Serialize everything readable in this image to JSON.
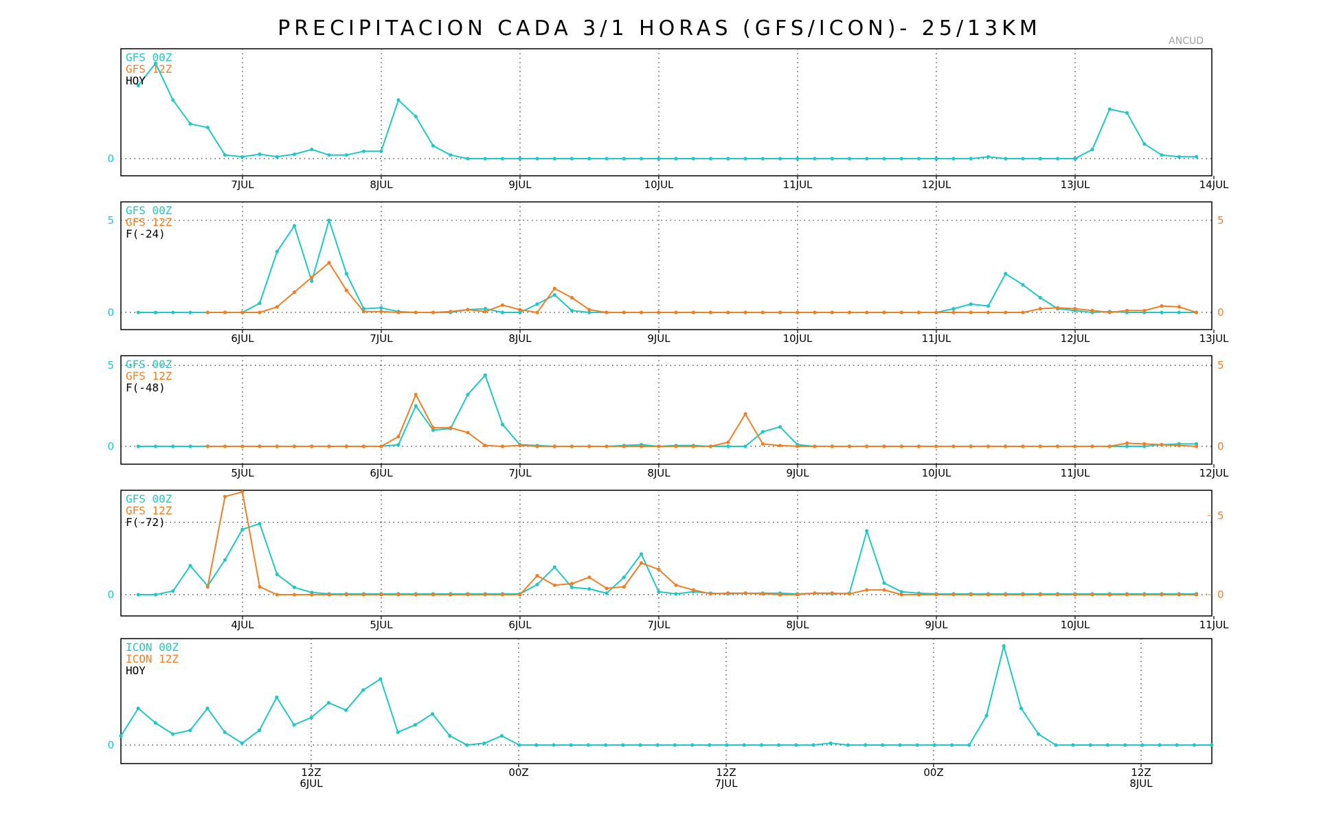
{
  "title": "PRECIPITACION CADA 3/1 HORAS (GFS/ICON)- 25/13KM",
  "station": "ANCUD",
  "colors": {
    "run00": "#1fc7c7",
    "run12": "#f07f24",
    "frame": "#000000",
    "grid": "#333333"
  },
  "chart_data": [
    {
      "type": "line",
      "legend": [
        "GFS 00Z",
        "GFS 12Z",
        "HOY"
      ],
      "x_ticks": [
        "7JUL",
        "8JUL",
        "9JUL",
        "10JUL",
        "11JUL",
        "12JUL",
        "13JUL",
        "14JUL"
      ],
      "x_tick_lines": [
        "",
        ""
      ],
      "left_y_ticks": [
        0
      ],
      "right_y_ticks": [],
      "ylim": [
        -0.5,
        3.0
      ],
      "series": [
        {
          "color": "#1fc7c7",
          "start": 1,
          "values": [
            2.0,
            2.6,
            1.6,
            0.95,
            0.85,
            0.1,
            0.05,
            0.12,
            0.05,
            0.12,
            0.25,
            0.1,
            0.1,
            0.2,
            0.2,
            1.6,
            1.15,
            0.35,
            0.1,
            0,
            0,
            0,
            0,
            0,
            0,
            0,
            0,
            0,
            0,
            0,
            0,
            0,
            0,
            0,
            0,
            0,
            0,
            0,
            0,
            0,
            0,
            0,
            0,
            0,
            0,
            0,
            0,
            0,
            0,
            0.05,
            0,
            0,
            0,
            0,
            0,
            0.25,
            1.35,
            1.25,
            0.4,
            0.1,
            0.05,
            0.05,
            0.05,
            0.05,
            0.05,
            0.35,
            1.05,
            0.55,
            0.25,
            0.1,
            0.05,
            0.05
          ]
        }
      ]
    },
    {
      "type": "line",
      "legend": [
        "GFS 00Z",
        "GFS 12Z",
        "F(-24)"
      ],
      "x_ticks": [
        "6JUL",
        "7JUL",
        "8JUL",
        "9JUL",
        "10JUL",
        "11JUL",
        "12JUL",
        "13JUL"
      ],
      "x_tick_lines": [
        "",
        ""
      ],
      "left_y_ticks": [
        0,
        5
      ],
      "right_y_ticks": [
        0,
        5
      ],
      "ylim": [
        -1.0,
        6.0
      ],
      "series": [
        {
          "color": "#1fc7c7",
          "start": 1,
          "values": [
            0,
            0,
            0,
            0,
            0,
            0,
            0,
            0.5,
            3.3,
            4.7,
            1.7,
            5.0,
            2.1,
            0.2,
            0.25,
            0.05,
            0,
            0,
            0,
            0.15,
            0.2,
            0,
            0,
            0.45,
            0.95,
            0.1,
            0,
            0,
            0,
            0,
            0,
            0,
            0,
            0,
            0,
            0,
            0,
            0,
            0,
            0,
            0,
            0,
            0,
            0,
            0,
            0,
            0,
            0.2,
            0.45,
            0.35,
            2.1,
            1.5,
            0.8,
            0.2,
            0.1,
            0,
            0.05,
            0,
            0,
            0,
            0,
            0,
            0,
            0.05
          ]
        },
        {
          "color": "#f07f24",
          "start": 5,
          "values": [
            0,
            0,
            0,
            0,
            0.3,
            1.1,
            1.9,
            2.7,
            1.2,
            0.05,
            0.05,
            0,
            0,
            0,
            0.05,
            0.15,
            0.05,
            0.4,
            0.15,
            0,
            1.3,
            0.8,
            0.15,
            0,
            0,
            0,
            0,
            0,
            0,
            0,
            0,
            0,
            0,
            0,
            0,
            0,
            0,
            0,
            0,
            0,
            0,
            0,
            0,
            0,
            0,
            0,
            0,
            0,
            0.2,
            0.25,
            0.2,
            0.1,
            0,
            0.1,
            0.1,
            0.35,
            0.3,
            0,
            0,
            0,
            0
          ]
        }
      ]
    },
    {
      "type": "line",
      "legend": [
        "GFS 00Z",
        "GFS 12Z",
        "F(-48)"
      ],
      "x_ticks": [
        "5JUL",
        "6JUL",
        "7JUL",
        "8JUL",
        "9JUL",
        "10JUL",
        "11JUL",
        "12JUL"
      ],
      "x_tick_lines": [
        "",
        ""
      ],
      "left_y_ticks": [
        0,
        5
      ],
      "right_y_ticks": [
        0,
        5
      ],
      "ylim": [
        -0.8,
        5.6
      ],
      "series": [
        {
          "color": "#1fc7c7",
          "start": 1,
          "values": [
            0,
            0,
            0,
            0,
            0,
            0,
            0,
            0,
            0,
            0,
            0,
            0,
            0,
            0,
            0,
            0.1,
            2.5,
            1.0,
            1.1,
            3.2,
            4.4,
            1.35,
            0.1,
            0.05,
            0,
            0,
            0,
            0,
            0.05,
            0.1,
            0,
            0.05,
            0.05,
            0,
            0,
            0,
            0.9,
            1.2,
            0.1,
            0,
            0,
            0,
            0,
            0,
            0,
            0,
            0,
            0,
            0,
            0,
            0,
            0,
            0,
            0,
            0,
            0,
            0,
            0,
            0,
            0.1,
            0.15,
            0.15,
            0
          ]
        },
        {
          "color": "#f07f24",
          "start": 5,
          "values": [
            0,
            0,
            0,
            0,
            0,
            0,
            0,
            0,
            0,
            0,
            0,
            0.6,
            3.2,
            1.15,
            1.15,
            0.85,
            0.05,
            0,
            0.05,
            0,
            0,
            0,
            0,
            0,
            0,
            0,
            0,
            0,
            0,
            0,
            0.25,
            2.0,
            0.15,
            0.05,
            0,
            0,
            0,
            0,
            0,
            0,
            0,
            0,
            0,
            0,
            0,
            0,
            0,
            0,
            0,
            0,
            0,
            0,
            0,
            0.2,
            0.15,
            0.1,
            0.05,
            0,
            0.25
          ]
        }
      ]
    },
    {
      "type": "line",
      "legend": [
        "GFS 00Z",
        "GFS 12Z",
        "F(-72)"
      ],
      "x_ticks": [
        "4JUL",
        "5JUL",
        "6JUL",
        "7JUL",
        "8JUL",
        "9JUL",
        "10JUL",
        "11JUL"
      ],
      "x_tick_lines": [
        "",
        ""
      ],
      "left_y_ticks": [
        0
      ],
      "right_y_ticks": [
        0,
        5
      ],
      "ylim": [
        -0.8,
        7.2
      ],
      "right_ylim": [
        -1.0,
        6.6
      ],
      "series": [
        {
          "color": "#1fc7c7",
          "start": 1,
          "values": [
            0,
            0,
            0.25,
            2.0,
            0.6,
            2.4,
            4.5,
            4.9,
            1.4,
            0.5,
            0.15,
            0.05,
            0.05,
            0.05,
            0.05,
            0.05,
            0.05,
            0.05,
            0.05,
            0.05,
            0.05,
            0.05,
            0.05,
            0.7,
            1.9,
            0.5,
            0.4,
            0.1,
            1.2,
            2.8,
            0.2,
            0.05,
            0.2,
            0.1,
            0.05,
            0.1,
            0.1,
            0.1,
            0.05,
            0.1,
            0.05,
            0.1,
            4.4,
            0.8,
            0.2,
            0.1,
            0.05,
            0.05,
            0.05,
            0.05,
            0.05,
            0.05,
            0.05,
            0.05,
            0.05,
            0.05,
            0.05,
            0.05,
            0.05,
            0.05,
            0.05,
            0.05,
            0.1,
            0.05
          ]
        },
        {
          "color": "#f07f24",
          "start": 5,
          "values": [
            0.5,
            6.2,
            6.5,
            0.5,
            0,
            0,
            0,
            0,
            0,
            0,
            0,
            0,
            0,
            0,
            0,
            0,
            0,
            0,
            0,
            1.2,
            0.6,
            0.7,
            1.1,
            0.4,
            0.5,
            2.0,
            1.6,
            0.6,
            0.3,
            0.05,
            0.1,
            0.1,
            0.05,
            0,
            0,
            0.1,
            0.1,
            0.05,
            0.3,
            0.3,
            0,
            0,
            0,
            0,
            0,
            0,
            0,
            0,
            0,
            0,
            0,
            0,
            0,
            0,
            0,
            0,
            0,
            0,
            0,
            0,
            0.5
          ]
        }
      ]
    },
    {
      "type": "line",
      "legend": [
        "ICON 00Z",
        "ICON 12Z",
        "HOY"
      ],
      "x_ticks": [
        "12Z",
        "00Z",
        "12Z",
        "00Z",
        "12Z"
      ],
      "x_tick_lines": [
        "6JUL",
        "7JUL",
        "8JUL"
      ],
      "left_y_ticks": [
        0
      ],
      "right_y_ticks": [],
      "ylim": [
        -0.4,
        2.9
      ],
      "series": [
        {
          "color": "#1fc7c7",
          "start": 0,
          "values": [
            0.25,
            1.0,
            0.6,
            0.3,
            0.4,
            1.0,
            0.35,
            0.05,
            0.4,
            1.3,
            0.55,
            0.75,
            1.15,
            0.95,
            1.5,
            1.8,
            0.35,
            0.55,
            0.85,
            0.25,
            0,
            0.05,
            0.25,
            0,
            0,
            0,
            0,
            0,
            0,
            0,
            0,
            0,
            0,
            0,
            0,
            0,
            0,
            0,
            0,
            0,
            0,
            0.05,
            0,
            0,
            0,
            0,
            0,
            0,
            0,
            0,
            0.8,
            2.7,
            1.0,
            0.3,
            0,
            0,
            0,
            0,
            0,
            0,
            0,
            0,
            0,
            0,
            0,
            0
          ]
        }
      ]
    }
  ]
}
